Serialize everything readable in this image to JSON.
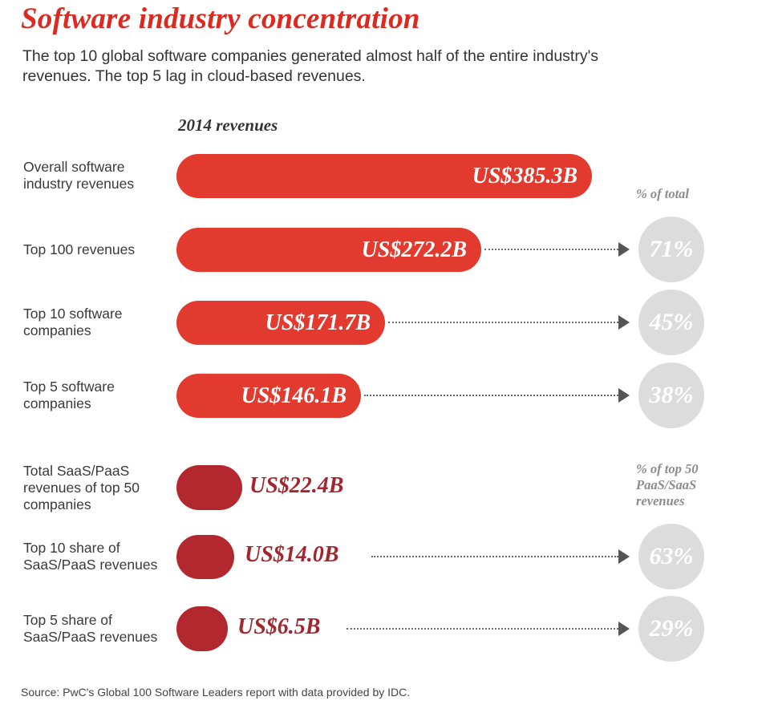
{
  "chart_data": {
    "type": "bar",
    "title": "Software industry concentration",
    "subtitle": "The top 10 global software companies generated almost half of the entire industry's revenues. The top 5 lag in cloud-based revenues.",
    "section_label": "2014 revenues",
    "unit": "US$ billions",
    "groups": [
      {
        "share_header": "% of total",
        "rows": [
          {
            "label": "Overall software industry revenues",
            "value": 385.3,
            "value_label": "US$385.3B",
            "share": null,
            "share_label": ""
          },
          {
            "label": "Top 100 revenues",
            "value": 272.2,
            "value_label": "US$272.2B",
            "share": 71,
            "share_label": "71%"
          },
          {
            "label": "Top 10 software companies",
            "value": 171.7,
            "value_label": "US$171.7B",
            "share": 45,
            "share_label": "45%"
          },
          {
            "label": "Top 5 software companies",
            "value": 146.1,
            "value_label": "US$146.1B",
            "share": 38,
            "share_label": "38%"
          }
        ]
      },
      {
        "share_header": "% of top 50\nPaaS/SaaS\nrevenues",
        "rows": [
          {
            "label": "Total SaaS/PaaS revenues of top 50 companies",
            "value": 22.4,
            "value_label": "US$22.4B",
            "share": null,
            "share_label": ""
          },
          {
            "label": "Top 10 share of SaaS/PaaS revenues",
            "value": 14.0,
            "value_label": "US$14.0B",
            "share": 63,
            "share_label": "63%"
          },
          {
            "label": "Top 5 share of SaaS/PaaS revenues",
            "value": 6.5,
            "value_label": "US$6.5B",
            "share": 29,
            "share_label": "29%"
          }
        ]
      }
    ],
    "source": "Source: PwC's Global 100 Software Leaders report with data provided by IDC."
  },
  "colors": {
    "title_red": "#dd2a20",
    "bar_red": "#e23a2f",
    "bar_dark_red": "#b3272f",
    "value_dark_red": "#a3262e",
    "circle_gray": "#dcdcdc"
  }
}
